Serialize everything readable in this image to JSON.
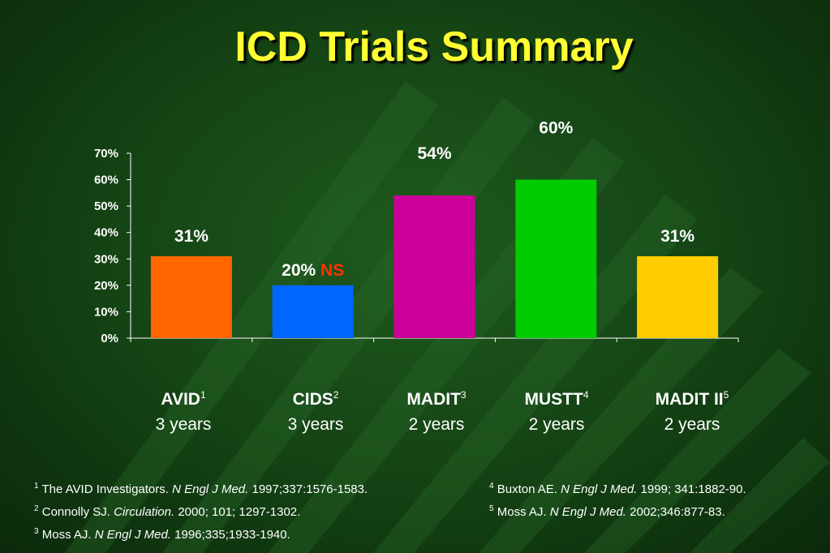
{
  "title": "ICD Trials Summary",
  "colors": {
    "avid": "#ff6600",
    "cids": "#0066ff",
    "madit": "#cc0099",
    "mustt": "#00cc00",
    "madit2": "#ffcc00",
    "ns": "#ff3300"
  },
  "chart_data": {
    "type": "bar",
    "categories": [
      "AVID",
      "CIDS",
      "MADIT",
      "MUSTT",
      "MADIT II"
    ],
    "values": [
      31,
      20,
      54,
      60,
      31
    ],
    "value_labels": [
      "31%",
      "20%",
      "54%",
      "60%",
      "31%"
    ],
    "annotation": "NS",
    "annotation_category": "CIDS",
    "ylim": [
      0,
      70
    ],
    "yticks": [
      "0%",
      "10%",
      "20%",
      "30%",
      "40%",
      "50%",
      "60%",
      "70%"
    ],
    "grid": false
  },
  "categories": [
    {
      "name": "AVID",
      "ref": "1",
      "duration": "3 years"
    },
    {
      "name": "CIDS",
      "ref": "2",
      "duration": "3 years"
    },
    {
      "name": "MADIT",
      "ref": "3",
      "duration": "2 years"
    },
    {
      "name": "MUSTT",
      "ref": "4",
      "duration": "2 years"
    },
    {
      "name": "MADIT II",
      "ref": "5",
      "duration": "2 years"
    }
  ],
  "references": [
    {
      "num": "1",
      "authors": "The AVID Investigators.",
      "journal": "N Engl J Med.",
      "citation": "1997;337:1576-1583."
    },
    {
      "num": "2",
      "authors": "Connolly SJ.",
      "journal": "Circulation.",
      "citation": "2000; 101; 1297-1302."
    },
    {
      "num": "3",
      "authors": "Moss AJ.",
      "journal": "N Engl J Med.",
      "citation": "1996;335;1933-1940."
    },
    {
      "num": "4",
      "authors": "Buxton AE.",
      "journal": "N Engl J Med.",
      "citation": "1999; 341:1882-90."
    },
    {
      "num": "5",
      "authors": "Moss AJ.",
      "journal": "N Engl J Med.",
      "citation": "2002;346:877-83."
    }
  ]
}
